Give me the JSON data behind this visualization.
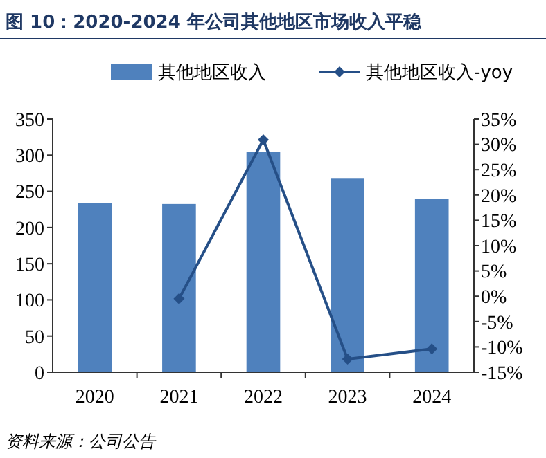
{
  "chart_data": {
    "type": "bar",
    "title": "图 10：2020-2024 年公司其他地区市场收入平稳",
    "categories": [
      "2020",
      "2021",
      "2022",
      "2023",
      "2024"
    ],
    "series": [
      {
        "name": "其他地区收入",
        "color": "#4f81bd",
        "values": [
          234,
          232.5,
          305,
          267.5,
          239.5
        ]
      },
      {
        "name": "其他地区收入-yoy",
        "type": "line",
        "axis": "y2",
        "color": "#254f87",
        "values": [
          null,
          -0.5,
          30.9,
          -12.4,
          -10.4
        ]
      }
    ],
    "ylim": [
      0,
      350
    ],
    "yticks": [
      0,
      50,
      100,
      150,
      200,
      250,
      300,
      350
    ],
    "y2lim": [
      -15,
      35
    ],
    "y2ticks": [
      {
        "value": -15,
        "label": "-15%"
      },
      {
        "value": -10,
        "label": "-10%"
      },
      {
        "value": -5,
        "label": "-5%"
      },
      {
        "value": 0,
        "label": "0%"
      },
      {
        "value": 5,
        "label": "5%"
      },
      {
        "value": 10,
        "label": "10%"
      },
      {
        "value": 15,
        "label": "15%"
      },
      {
        "value": 20,
        "label": "20%"
      },
      {
        "value": 25,
        "label": "25%"
      },
      {
        "value": 30,
        "label": "30%"
      },
      {
        "value": 35,
        "label": "35%"
      }
    ],
    "legend": "top",
    "marker": "diamond",
    "grid": false,
    "annotations": [
      "资料来源：公司公告"
    ]
  }
}
